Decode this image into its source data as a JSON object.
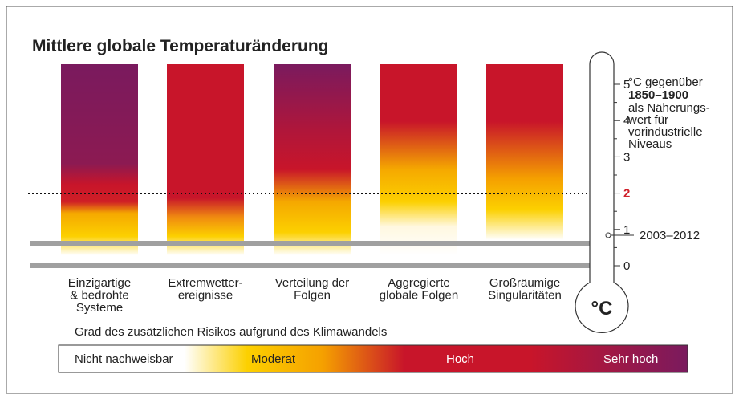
{
  "title": "Mittlere globale Temperaturänderung",
  "categories": [
    [
      "Einzigartige",
      "& bedrohte",
      "Systeme"
    ],
    [
      "Extremwetter-",
      "ereignisse"
    ],
    [
      "Verteilung der",
      "Folgen"
    ],
    [
      "Aggregierte",
      "globale Folgen"
    ],
    [
      "Großräumige",
      "Singularitäten"
    ]
  ],
  "thermometer": {
    "unit": "°C",
    "ticks": [
      "0",
      "1",
      "2",
      "3",
      "4",
      "5"
    ],
    "period": "2003–2012"
  },
  "reference": {
    "line1": "°C gegenüber",
    "bold": "1850–1900",
    "rest": [
      "als Näherungs-",
      "wert für",
      "vorindustrielle",
      "Niveaus"
    ]
  },
  "legend": {
    "title": "Grad des zusätzlichen Risikos aufgrund des Klimawandels",
    "labels": [
      "Nicht nachweisbar",
      "Moderat",
      "Hoch",
      "Sehr hoch"
    ]
  }
}
